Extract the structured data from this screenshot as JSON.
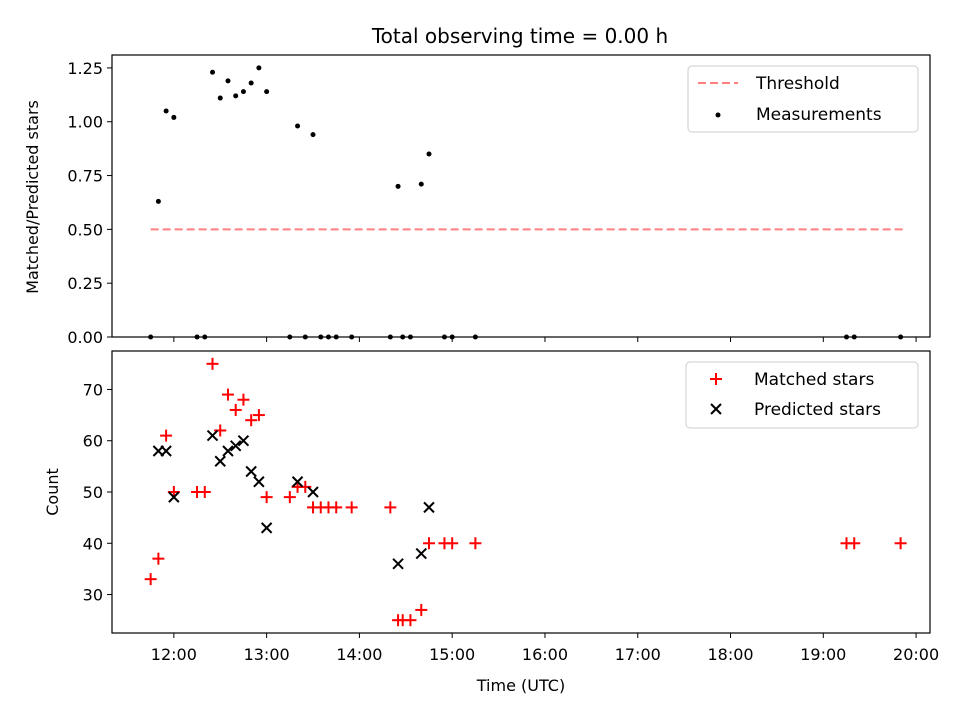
{
  "chart_data": [
    {
      "type": "scatter",
      "title": "Total observing time = 0.00 h",
      "ylabel": "Matched/Predicted stars",
      "xlabel": "",
      "xlim": [
        "11:20",
        "20:09"
      ],
      "ylim": [
        0,
        1.31
      ],
      "yticks": [
        0,
        0.25,
        0.5,
        0.75,
        1.0,
        1.25
      ],
      "ytick_labels": [
        "0.00",
        "0.25",
        "0.50",
        "0.75",
        "1.00",
        "1.25"
      ],
      "legend_position": "top-right",
      "threshold": {
        "name": "Threshold",
        "color": "#ff7f7f",
        "style": "dashed",
        "y": 0.5,
        "x_range": [
          "11:45",
          "19:52"
        ]
      },
      "series": [
        {
          "name": "Measurements",
          "color": "#000000",
          "marker": "dot",
          "points": [
            [
              "11:45",
              0.0
            ],
            [
              "11:50",
              0.63
            ],
            [
              "11:55",
              1.05
            ],
            [
              "12:00",
              1.02
            ],
            [
              "12:15",
              0.0
            ],
            [
              "12:20",
              0.0
            ],
            [
              "12:25",
              1.23
            ],
            [
              "12:30",
              1.11
            ],
            [
              "12:35",
              1.19
            ],
            [
              "12:40",
              1.12
            ],
            [
              "12:45",
              1.14
            ],
            [
              "12:50",
              1.18
            ],
            [
              "12:55",
              1.25
            ],
            [
              "13:00",
              1.14
            ],
            [
              "13:15",
              0.0
            ],
            [
              "13:20",
              0.98
            ],
            [
              "13:25",
              0.0
            ],
            [
              "13:30",
              0.94
            ],
            [
              "13:35",
              0.0
            ],
            [
              "13:40",
              0.0
            ],
            [
              "13:45",
              0.0
            ],
            [
              "13:55",
              0.0
            ],
            [
              "14:20",
              0.0
            ],
            [
              "14:25",
              0.7
            ],
            [
              "14:28",
              0.0
            ],
            [
              "14:33",
              0.0
            ],
            [
              "14:40",
              0.71
            ],
            [
              "14:45",
              0.85
            ],
            [
              "14:55",
              0.0
            ],
            [
              "15:00",
              0.0
            ],
            [
              "15:15",
              0.0
            ],
            [
              "19:15",
              0.0
            ],
            [
              "19:20",
              0.0
            ],
            [
              "19:50",
              0.0
            ]
          ]
        }
      ]
    },
    {
      "type": "scatter",
      "title": "",
      "ylabel": "Count",
      "xlabel": "Time (UTC)",
      "xlim": [
        "11:20",
        "20:09"
      ],
      "ylim": [
        22.5,
        77.5
      ],
      "yticks": [
        30,
        40,
        50,
        60,
        70
      ],
      "ytick_labels": [
        "30",
        "40",
        "50",
        "60",
        "70"
      ],
      "xticks": [
        "12:00",
        "13:00",
        "14:00",
        "15:00",
        "16:00",
        "17:00",
        "18:00",
        "19:00",
        "20:00"
      ],
      "xtick_labels": [
        "12:00",
        "13:00",
        "14:00",
        "15:00",
        "16:00",
        "17:00",
        "18:00",
        "19:00",
        "20:00"
      ],
      "legend_position": "top-right",
      "series": [
        {
          "name": "Matched stars",
          "color": "#ff0000",
          "marker": "plus",
          "points": [
            [
              "11:45",
              33
            ],
            [
              "11:50",
              37
            ],
            [
              "11:55",
              61
            ],
            [
              "12:00",
              50
            ],
            [
              "12:15",
              50
            ],
            [
              "12:20",
              50
            ],
            [
              "12:25",
              75
            ],
            [
              "12:30",
              62
            ],
            [
              "12:35",
              69
            ],
            [
              "12:40",
              66
            ],
            [
              "12:45",
              68
            ],
            [
              "12:50",
              64
            ],
            [
              "12:55",
              65
            ],
            [
              "13:00",
              49
            ],
            [
              "13:15",
              49
            ],
            [
              "13:20",
              51
            ],
            [
              "13:25",
              51
            ],
            [
              "13:30",
              47
            ],
            [
              "13:35",
              47
            ],
            [
              "13:40",
              47
            ],
            [
              "13:45",
              47
            ],
            [
              "13:55",
              47
            ],
            [
              "14:20",
              47
            ],
            [
              "14:25",
              25
            ],
            [
              "14:28",
              25
            ],
            [
              "14:33",
              25
            ],
            [
              "14:40",
              27
            ],
            [
              "14:45",
              40
            ],
            [
              "14:55",
              40
            ],
            [
              "15:00",
              40
            ],
            [
              "15:15",
              40
            ],
            [
              "19:15",
              40
            ],
            [
              "19:20",
              40
            ],
            [
              "19:50",
              40
            ]
          ]
        },
        {
          "name": "Predicted stars",
          "color": "#000000",
          "marker": "x",
          "points": [
            [
              "11:50",
              58
            ],
            [
              "11:55",
              58
            ],
            [
              "12:00",
              49
            ],
            [
              "12:25",
              61
            ],
            [
              "12:30",
              56
            ],
            [
              "12:35",
              58
            ],
            [
              "12:40",
              59
            ],
            [
              "12:45",
              60
            ],
            [
              "12:50",
              54
            ],
            [
              "12:55",
              52
            ],
            [
              "13:00",
              43
            ],
            [
              "13:20",
              52
            ],
            [
              "13:30",
              50
            ],
            [
              "14:25",
              36
            ],
            [
              "14:40",
              38
            ],
            [
              "14:45",
              47
            ]
          ]
        }
      ]
    }
  ]
}
